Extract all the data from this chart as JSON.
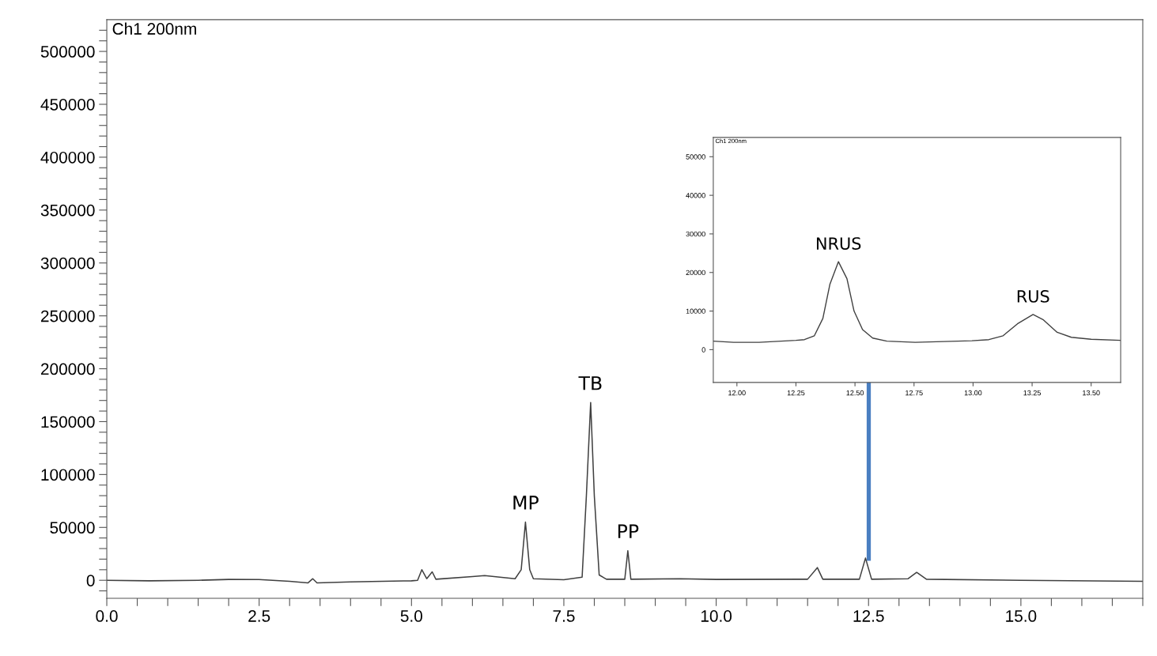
{
  "chart_data": [
    {
      "type": "line",
      "x": [
        0,
        0.7,
        1.5,
        2.0,
        2.5,
        3.0,
        3.3,
        3.38,
        3.45,
        4.0,
        5.0,
        5.1,
        5.17,
        5.25,
        5.34,
        5.4,
        6.0,
        6.2,
        6.7,
        6.8,
        6.87,
        6.94,
        7.0,
        7.5,
        7.8,
        7.87,
        7.94,
        8.0,
        8.08,
        8.2,
        8.5,
        8.55,
        8.6,
        9.4,
        10.0,
        11.5,
        11.66,
        11.75,
        12.35,
        12.45,
        12.55,
        13.15,
        13.29,
        13.45,
        15.0,
        17.0
      ],
      "series": [
        {
          "color": "#404040",
          "values": [
            0,
            -500,
            0,
            800,
            700,
            -1000,
            -2500,
            1500,
            -2500,
            -1500,
            -500,
            0,
            10000,
            1500,
            8000,
            1000,
            3500,
            4500,
            1500,
            10000,
            55000,
            10000,
            1500,
            500,
            3000,
            80000,
            168000,
            80000,
            5000,
            1000,
            1000,
            28000,
            1000,
            1500,
            800,
            1000,
            12000,
            1000,
            1000,
            21000,
            1000,
            1500,
            7500,
            1000,
            0,
            -1000
          ]
        }
      ],
      "xlim": [
        0,
        17
      ],
      "ylim": [
        -17000,
        530000
      ],
      "xticks": [
        {
          "value": 0,
          "label": "0.0"
        },
        {
          "value": 0.5,
          "label": null
        },
        {
          "value": 1.0,
          "label": null
        },
        {
          "value": 1.5,
          "label": null
        },
        {
          "value": 2.0,
          "label": null
        },
        {
          "value": 2.5,
          "label": "2.5"
        },
        {
          "value": 3.0,
          "label": null
        },
        {
          "value": 3.5,
          "label": null
        },
        {
          "value": 4.0,
          "label": null
        },
        {
          "value": 4.5,
          "label": null
        },
        {
          "value": 5.0,
          "label": "5.0"
        },
        {
          "value": 5.5,
          "label": null
        },
        {
          "value": 6.0,
          "label": null
        },
        {
          "value": 6.5,
          "label": null
        },
        {
          "value": 7.0,
          "label": null
        },
        {
          "value": 7.5,
          "label": "7.5"
        },
        {
          "value": 8.0,
          "label": null
        },
        {
          "value": 8.5,
          "label": null
        },
        {
          "value": 9.0,
          "label": null
        },
        {
          "value": 9.5,
          "label": null
        },
        {
          "value": 10.0,
          "label": "10.0"
        },
        {
          "value": 10.5,
          "label": null
        },
        {
          "value": 11.0,
          "label": null
        },
        {
          "value": 11.5,
          "label": null
        },
        {
          "value": 12.0,
          "label": null
        },
        {
          "value": 12.5,
          "label": "12.5"
        },
        {
          "value": 13.0,
          "label": null
        },
        {
          "value": 13.5,
          "label": null
        },
        {
          "value": 14.0,
          "label": null
        },
        {
          "value": 14.5,
          "label": null
        },
        {
          "value": 15.0,
          "label": "15.0"
        },
        {
          "value": 15.5,
          "label": null
        },
        {
          "value": 16.0,
          "label": null
        },
        {
          "value": 16.5,
          "label": null
        },
        {
          "value": 17.0,
          "label": null
        }
      ],
      "yticks": [
        {
          "value": -10000,
          "label": null
        },
        0,
        {
          "value": 10000,
          "label": null
        },
        {
          "value": 20000,
          "label": null
        },
        {
          "value": 30000,
          "label": null
        },
        {
          "value": 40000,
          "label": null
        },
        50000,
        {
          "value": 60000,
          "label": null
        },
        {
          "value": 70000,
          "label": null
        },
        {
          "value": 80000,
          "label": null
        },
        {
          "value": 90000,
          "label": null
        },
        100000,
        {
          "value": 110000,
          "label": null
        },
        {
          "value": 120000,
          "label": null
        },
        {
          "value": 130000,
          "label": null
        },
        {
          "value": 140000,
          "label": null
        },
        150000,
        {
          "value": 160000,
          "label": null
        },
        {
          "value": 170000,
          "label": null
        },
        {
          "value": 180000,
          "label": null
        },
        {
          "value": 190000,
          "label": null
        },
        200000,
        {
          "value": 210000,
          "label": null
        },
        {
          "value": 220000,
          "label": null
        },
        {
          "value": 230000,
          "label": null
        },
        {
          "value": 240000,
          "label": null
        },
        250000,
        {
          "value": 260000,
          "label": null
        },
        {
          "value": 270000,
          "label": null
        },
        {
          "value": 280000,
          "label": null
        },
        {
          "value": 290000,
          "label": null
        },
        300000,
        {
          "value": 310000,
          "label": null
        },
        {
          "value": 320000,
          "label": null
        },
        {
          "value": 330000,
          "label": null
        },
        {
          "value": 340000,
          "label": null
        },
        350000,
        {
          "value": 360000,
          "label": null
        },
        {
          "value": 370000,
          "label": null
        },
        {
          "value": 380000,
          "label": null
        },
        {
          "value": 390000,
          "label": null
        },
        400000,
        {
          "value": 410000,
          "label": null
        },
        {
          "value": 420000,
          "label": null
        },
        {
          "value": 430000,
          "label": null
        },
        {
          "value": 440000,
          "label": null
        },
        450000,
        {
          "value": 460000,
          "label": null
        },
        {
          "value": 470000,
          "label": null
        },
        {
          "value": 480000,
          "label": null
        },
        {
          "value": 490000,
          "label": null
        },
        500000,
        {
          "value": 510000,
          "label": null
        },
        {
          "value": 520000,
          "label": null
        }
      ],
      "grid": false,
      "annotations": [
        "Ch1 200nm",
        {
          "text": "MP",
          "x": 6.87,
          "y": 55000
        },
        {
          "text": "TB",
          "x": 7.94,
          "y": 168000
        },
        {
          "text": "PP",
          "x": 8.55,
          "y": 28000
        }
      ]
    },
    {
      "type": "line",
      "x": [
        11.9,
        11.986,
        12.094,
        12.25,
        12.286,
        12.328,
        12.364,
        12.394,
        12.43,
        12.466,
        12.496,
        12.532,
        12.575,
        12.635,
        12.755,
        12.875,
        12.995,
        13.067,
        13.127,
        13.188,
        13.254,
        13.296,
        13.356,
        13.416,
        13.5,
        13.625
      ],
      "series": [
        {
          "color": "#404040",
          "values": [
            2200,
            1900,
            1900,
            2400,
            2600,
            3600,
            8100,
            17000,
            22800,
            18400,
            10000,
            5200,
            3000,
            2200,
            1900,
            2100,
            2300,
            2600,
            3600,
            6700,
            9100,
            7800,
            4500,
            3200,
            2700,
            2400
          ]
        }
      ],
      "xlim": [
        11.9,
        13.625
      ],
      "ylim": [
        -8500,
        55000
      ],
      "xticks": [
        {
          "value": 12.0,
          "label": "12.00"
        },
        {
          "value": 12.25,
          "label": "12.25"
        },
        {
          "value": 12.5,
          "label": "12.50"
        },
        {
          "value": 12.75,
          "label": "12.75"
        },
        {
          "value": 13.0,
          "label": "13.00"
        },
        {
          "value": 13.25,
          "label": "13.25"
        },
        {
          "value": 13.5,
          "label": "13.50"
        }
      ],
      "yticks": [
        0,
        10000,
        20000,
        30000,
        40000,
        50000
      ],
      "grid": false,
      "annotations": [
        "Ch1 200nm",
        {
          "text": "NRUS",
          "x": 12.43,
          "y": 22800
        },
        {
          "text": "RUS",
          "x": 13.254,
          "y": 9100
        }
      ]
    }
  ]
}
